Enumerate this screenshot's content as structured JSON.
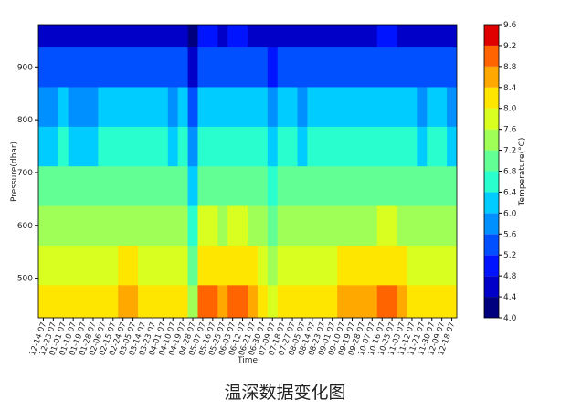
{
  "chart_data": {
    "type": "contour",
    "caption": "温深数据变化图",
    "x_label": "Time",
    "y_label": "Pressure(dbar)",
    "colorbar_label": "Temperature(°C)",
    "categories": [
      "12-14 07",
      "12-23 07",
      "01-01 07",
      "01-10 07",
      "01-19 07",
      "01-28 07",
      "02-06 07",
      "02-15 07",
      "02-24 07",
      "03-05 07",
      "03-14 07",
      "03-23 07",
      "04-01 07",
      "04-10 07",
      "04-19 07",
      "04-28 07",
      "05-07 07",
      "05-16 07",
      "05-25 07",
      "06-03 07",
      "06-12 07",
      "06-21 07",
      "06-30 07",
      "07-09 07",
      "07-18 07",
      "07-27 07",
      "08-05 07",
      "08-14 07",
      "08-23 07",
      "09-01 07",
      "09-10 07",
      "09-19 07",
      "09-28 07",
      "10-07 07",
      "10-16 07",
      "10-25 07",
      "11-03 07",
      "11-12 07",
      "11-21 07",
      "11-30 07",
      "12-09 07",
      "12-18 07"
    ],
    "y": [
      450,
      525,
      600,
      675,
      750,
      825,
      900,
      975
    ],
    "z": [
      [
        8.0,
        7.6,
        7.2,
        6.8,
        6.3,
        5.8,
        5.2,
        4.5
      ],
      [
        8.0,
        7.6,
        7.2,
        6.8,
        6.3,
        5.8,
        5.2,
        4.5
      ],
      [
        8.2,
        7.8,
        7.4,
        7.0,
        6.5,
        6.0,
        5.4,
        4.7
      ],
      [
        8.0,
        7.6,
        7.2,
        6.8,
        6.3,
        5.8,
        5.2,
        4.5
      ],
      [
        8.0,
        7.6,
        7.2,
        6.8,
        6.3,
        5.8,
        5.2,
        4.5
      ],
      [
        8.0,
        7.6,
        7.2,
        6.8,
        6.3,
        5.8,
        5.2,
        4.5
      ],
      [
        8.2,
        7.8,
        7.4,
        7.0,
        6.5,
        6.0,
        5.4,
        4.7
      ],
      [
        8.2,
        7.8,
        7.4,
        7.0,
        6.5,
        6.0,
        5.4,
        4.7
      ],
      [
        8.6,
        8.0,
        7.5,
        7.0,
        6.5,
        6.0,
        5.4,
        4.7
      ],
      [
        8.6,
        8.0,
        7.5,
        7.0,
        6.5,
        6.0,
        5.4,
        4.7
      ],
      [
        8.2,
        7.8,
        7.4,
        7.0,
        6.5,
        6.0,
        5.4,
        4.7
      ],
      [
        8.2,
        7.8,
        7.4,
        7.0,
        6.5,
        6.0,
        5.4,
        4.7
      ],
      [
        8.2,
        7.8,
        7.4,
        7.0,
        6.5,
        6.0,
        5.4,
        4.7
      ],
      [
        8.0,
        7.6,
        7.2,
        6.8,
        6.3,
        5.8,
        5.2,
        4.5
      ],
      [
        8.2,
        7.8,
        7.4,
        7.0,
        6.5,
        6.0,
        5.4,
        4.7
      ],
      [
        7.2,
        6.8,
        6.4,
        6.0,
        5.6,
        5.2,
        4.6,
        4.1
      ],
      [
        8.8,
        8.2,
        7.6,
        7.1,
        6.6,
        6.1,
        5.5,
        4.8
      ],
      [
        8.8,
        8.2,
        7.6,
        7.1,
        6.6,
        6.1,
        5.5,
        4.8
      ],
      [
        8.6,
        8.0,
        7.5,
        7.0,
        6.5,
        6.0,
        5.4,
        4.7
      ],
      [
        8.8,
        8.2,
        7.6,
        7.1,
        6.6,
        6.1,
        5.5,
        4.8
      ],
      [
        8.8,
        8.2,
        7.6,
        7.1,
        6.6,
        6.1,
        5.5,
        4.8
      ],
      [
        8.6,
        8.0,
        7.5,
        7.0,
        6.5,
        6.0,
        5.4,
        4.7
      ],
      [
        8.2,
        7.8,
        7.4,
        7.0,
        6.5,
        6.0,
        5.4,
        4.7
      ],
      [
        7.8,
        7.4,
        7.0,
        6.6,
        6.1,
        5.6,
        5.0,
        4.4
      ],
      [
        8.2,
        7.8,
        7.4,
        7.0,
        6.5,
        6.0,
        5.4,
        4.7
      ],
      [
        8.2,
        7.8,
        7.4,
        7.0,
        6.5,
        6.0,
        5.4,
        4.7
      ],
      [
        8.0,
        7.6,
        7.2,
        6.8,
        6.3,
        5.8,
        5.2,
        4.5
      ],
      [
        8.2,
        7.8,
        7.4,
        7.0,
        6.5,
        6.0,
        5.4,
        4.7
      ],
      [
        8.2,
        7.8,
        7.4,
        7.0,
        6.5,
        6.0,
        5.4,
        4.7
      ],
      [
        8.2,
        7.8,
        7.4,
        7.0,
        6.5,
        6.0,
        5.4,
        4.7
      ],
      [
        8.6,
        8.0,
        7.5,
        7.0,
        6.5,
        6.0,
        5.4,
        4.7
      ],
      [
        8.6,
        8.0,
        7.5,
        7.0,
        6.5,
        6.0,
        5.4,
        4.7
      ],
      [
        8.6,
        8.0,
        7.5,
        7.0,
        6.5,
        6.0,
        5.4,
        4.7
      ],
      [
        8.6,
        8.0,
        7.5,
        7.0,
        6.5,
        6.0,
        5.4,
        4.7
      ],
      [
        8.8,
        8.2,
        7.6,
        7.1,
        6.6,
        6.1,
        5.5,
        4.8
      ],
      [
        8.8,
        8.2,
        7.6,
        7.1,
        6.6,
        6.1,
        5.5,
        4.8
      ],
      [
        8.6,
        8.0,
        7.5,
        7.0,
        6.5,
        6.0,
        5.4,
        4.7
      ],
      [
        8.2,
        7.8,
        7.4,
        7.0,
        6.5,
        6.0,
        5.4,
        4.7
      ],
      [
        8.0,
        7.6,
        7.2,
        6.8,
        6.3,
        5.8,
        5.2,
        4.5
      ],
      [
        8.2,
        7.8,
        7.4,
        7.0,
        6.5,
        6.0,
        5.4,
        4.7
      ],
      [
        8.2,
        7.8,
        7.4,
        7.0,
        6.5,
        6.0,
        5.4,
        4.7
      ],
      [
        8.0,
        7.6,
        7.2,
        6.8,
        6.3,
        5.8,
        5.2,
        4.5
      ]
    ],
    "ylim": [
      425,
      980
    ],
    "yticks": [
      500,
      600,
      700,
      800,
      900
    ],
    "clim": [
      4,
      9.6
    ],
    "cticks": [
      {
        "value": 4,
        "label": "4.0"
      },
      {
        "value": 4.4,
        "label": "4.4"
      },
      {
        "value": 4.8,
        "label": "4.8"
      },
      {
        "value": 5.2,
        "label": "5.2"
      },
      {
        "value": 5.6,
        "label": "5.6"
      },
      {
        "value": 6,
        "label": "6.0"
      },
      {
        "value": 6.4,
        "label": "6.4"
      },
      {
        "value": 6.8,
        "label": "6.8"
      },
      {
        "value": 7.2,
        "label": "7.2"
      },
      {
        "value": 7.6,
        "label": "7.6"
      },
      {
        "value": 8,
        "label": "8.0"
      },
      {
        "value": 8.4,
        "label": "8.4"
      },
      {
        "value": 8.8,
        "label": "8.8"
      },
      {
        "value": 9.2,
        "label": "9.2"
      },
      {
        "value": 9.6,
        "label": "9.6"
      }
    ],
    "colors": [
      "#00007f",
      "#0000c8",
      "#0014ff",
      "#0050ff",
      "#0090ff",
      "#00ccff",
      "#29ffce",
      "#62ff95",
      "#a0ff56",
      "#d8ff1f",
      "#ffe600",
      "#ffa800",
      "#ff6400",
      "#e00000",
      "#8b0000"
    ]
  }
}
